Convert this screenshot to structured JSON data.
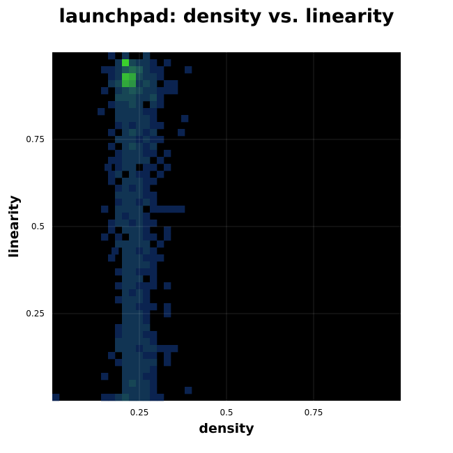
{
  "chart_data": {
    "type": "heatmap",
    "title": "launchpad: density vs. linearity",
    "xlabel": "density",
    "ylabel": "linearity",
    "xlim": [
      0,
      1
    ],
    "ylim": [
      0,
      1
    ],
    "grid": true,
    "background": "#000000",
    "x_ticks": [
      {
        "value": 0.25,
        "label": "0.25"
      },
      {
        "value": 0.5,
        "label": "0.5"
      },
      {
        "value": 0.75,
        "label": "0.75"
      }
    ],
    "y_ticks": [
      {
        "value": 0.25,
        "label": "0.25"
      },
      {
        "value": 0.5,
        "label": "0.5"
      },
      {
        "value": 0.75,
        "label": "0.75"
      }
    ],
    "bins": 50,
    "colors": {
      "low": "#0b2350",
      "mid": "#1e5a58",
      "high": "#3bd12c"
    },
    "cells": [
      [
        0.16,
        0.98,
        1
      ],
      [
        0.2,
        0.98,
        2
      ],
      [
        0.26,
        0.98,
        2
      ],
      [
        0.18,
        0.96,
        2
      ],
      [
        0.2,
        0.96,
        10
      ],
      [
        0.22,
        0.96,
        3
      ],
      [
        0.24,
        0.96,
        2
      ],
      [
        0.26,
        0.96,
        2
      ],
      [
        0.28,
        0.96,
        1
      ],
      [
        0.32,
        0.96,
        1
      ],
      [
        0.14,
        0.94,
        1
      ],
      [
        0.16,
        0.94,
        1
      ],
      [
        0.18,
        0.94,
        2
      ],
      [
        0.2,
        0.94,
        4
      ],
      [
        0.22,
        0.94,
        5
      ],
      [
        0.24,
        0.94,
        4
      ],
      [
        0.26,
        0.94,
        2
      ],
      [
        0.28,
        0.94,
        1
      ],
      [
        0.3,
        0.94,
        1
      ],
      [
        0.38,
        0.94,
        1
      ],
      [
        0.16,
        0.92,
        1
      ],
      [
        0.18,
        0.92,
        2
      ],
      [
        0.2,
        0.92,
        9
      ],
      [
        0.22,
        0.92,
        8
      ],
      [
        0.24,
        0.92,
        3
      ],
      [
        0.26,
        0.92,
        2
      ],
      [
        0.28,
        0.92,
        2
      ],
      [
        0.3,
        0.92,
        1
      ],
      [
        0.16,
        0.9,
        2
      ],
      [
        0.18,
        0.9,
        3
      ],
      [
        0.2,
        0.9,
        8
      ],
      [
        0.22,
        0.9,
        7
      ],
      [
        0.24,
        0.9,
        2
      ],
      [
        0.26,
        0.9,
        3
      ],
      [
        0.28,
        0.9,
        2
      ],
      [
        0.32,
        0.9,
        1
      ],
      [
        0.34,
        0.9,
        1
      ],
      [
        0.14,
        0.88,
        1
      ],
      [
        0.18,
        0.88,
        2
      ],
      [
        0.2,
        0.88,
        3
      ],
      [
        0.22,
        0.88,
        4
      ],
      [
        0.24,
        0.88,
        3
      ],
      [
        0.26,
        0.88,
        2
      ],
      [
        0.28,
        0.88,
        2
      ],
      [
        0.3,
        0.88,
        1
      ],
      [
        0.32,
        0.88,
        1
      ],
      [
        0.34,
        0.88,
        1
      ],
      [
        0.18,
        0.86,
        3
      ],
      [
        0.2,
        0.86,
        3
      ],
      [
        0.22,
        0.86,
        3
      ],
      [
        0.24,
        0.86,
        2
      ],
      [
        0.26,
        0.86,
        2
      ],
      [
        0.28,
        0.86,
        3
      ],
      [
        0.3,
        0.86,
        1
      ],
      [
        0.16,
        0.84,
        1
      ],
      [
        0.18,
        0.84,
        2
      ],
      [
        0.2,
        0.84,
        2
      ],
      [
        0.22,
        0.84,
        3
      ],
      [
        0.24,
        0.84,
        2
      ],
      [
        0.28,
        0.84,
        2
      ],
      [
        0.3,
        0.84,
        1
      ],
      [
        0.13,
        0.82,
        1
      ],
      [
        0.18,
        0.82,
        2
      ],
      [
        0.2,
        0.82,
        2
      ],
      [
        0.22,
        0.82,
        2
      ],
      [
        0.24,
        0.82,
        2
      ],
      [
        0.26,
        0.82,
        1
      ],
      [
        0.28,
        0.82,
        1
      ],
      [
        0.18,
        0.8,
        2
      ],
      [
        0.2,
        0.8,
        2
      ],
      [
        0.22,
        0.8,
        2
      ],
      [
        0.24,
        0.8,
        2
      ],
      [
        0.26,
        0.8,
        2
      ],
      [
        0.28,
        0.8,
        1
      ],
      [
        0.37,
        0.8,
        1
      ],
      [
        0.18,
        0.78,
        1
      ],
      [
        0.2,
        0.78,
        2
      ],
      [
        0.22,
        0.78,
        1
      ],
      [
        0.24,
        0.78,
        2
      ],
      [
        0.26,
        0.78,
        2
      ],
      [
        0.28,
        0.78,
        1
      ],
      [
        0.3,
        0.78,
        1
      ],
      [
        0.16,
        0.76,
        1
      ],
      [
        0.2,
        0.76,
        2
      ],
      [
        0.22,
        0.76,
        3
      ],
      [
        0.24,
        0.76,
        2
      ],
      [
        0.26,
        0.76,
        1
      ],
      [
        0.28,
        0.76,
        2
      ],
      [
        0.36,
        0.76,
        1
      ],
      [
        0.18,
        0.74,
        2
      ],
      [
        0.2,
        0.74,
        2
      ],
      [
        0.22,
        0.74,
        2
      ],
      [
        0.24,
        0.74,
        1
      ],
      [
        0.26,
        0.74,
        2
      ],
      [
        0.28,
        0.74,
        1
      ],
      [
        0.3,
        0.74,
        1
      ],
      [
        0.16,
        0.72,
        1
      ],
      [
        0.2,
        0.72,
        2
      ],
      [
        0.22,
        0.72,
        3
      ],
      [
        0.24,
        0.72,
        2
      ],
      [
        0.26,
        0.72,
        1
      ],
      [
        0.28,
        0.72,
        2
      ],
      [
        0.18,
        0.7,
        1
      ],
      [
        0.2,
        0.7,
        2
      ],
      [
        0.22,
        0.7,
        2
      ],
      [
        0.24,
        0.7,
        2
      ],
      [
        0.26,
        0.7,
        1
      ],
      [
        0.28,
        0.7,
        1
      ],
      [
        0.32,
        0.7,
        1
      ],
      [
        0.16,
        0.68,
        1
      ],
      [
        0.18,
        0.68,
        1
      ],
      [
        0.2,
        0.68,
        2
      ],
      [
        0.22,
        0.68,
        2
      ],
      [
        0.24,
        0.68,
        2
      ],
      [
        0.26,
        0.68,
        2
      ],
      [
        0.3,
        0.68,
        1
      ],
      [
        0.15,
        0.66,
        1
      ],
      [
        0.18,
        0.66,
        1
      ],
      [
        0.2,
        0.66,
        2
      ],
      [
        0.22,
        0.66,
        2
      ],
      [
        0.26,
        0.66,
        1
      ],
      [
        0.28,
        0.66,
        1
      ],
      [
        0.32,
        0.66,
        1
      ],
      [
        0.16,
        0.64,
        1
      ],
      [
        0.18,
        0.64,
        2
      ],
      [
        0.22,
        0.64,
        2
      ],
      [
        0.24,
        0.64,
        1
      ],
      [
        0.26,
        0.64,
        1
      ],
      [
        0.3,
        0.64,
        1
      ],
      [
        0.16,
        0.62,
        1
      ],
      [
        0.2,
        0.62,
        2
      ],
      [
        0.22,
        0.62,
        2
      ],
      [
        0.24,
        0.62,
        2
      ],
      [
        0.26,
        0.62,
        1
      ],
      [
        0.28,
        0.62,
        1
      ],
      [
        0.18,
        0.6,
        1
      ],
      [
        0.2,
        0.6,
        2
      ],
      [
        0.22,
        0.6,
        1
      ],
      [
        0.24,
        0.6,
        2
      ],
      [
        0.26,
        0.6,
        1
      ],
      [
        0.18,
        0.58,
        2
      ],
      [
        0.2,
        0.58,
        2
      ],
      [
        0.22,
        0.58,
        2
      ],
      [
        0.24,
        0.58,
        2
      ],
      [
        0.26,
        0.58,
        1
      ],
      [
        0.28,
        0.58,
        1
      ],
      [
        0.18,
        0.56,
        1
      ],
      [
        0.2,
        0.56,
        2
      ],
      [
        0.22,
        0.56,
        2
      ],
      [
        0.24,
        0.56,
        1
      ],
      [
        0.26,
        0.56,
        2
      ],
      [
        0.28,
        0.56,
        1
      ],
      [
        0.14,
        0.54,
        1
      ],
      [
        0.18,
        0.54,
        2
      ],
      [
        0.2,
        0.54,
        2
      ],
      [
        0.22,
        0.54,
        2
      ],
      [
        0.24,
        0.54,
        2
      ],
      [
        0.28,
        0.54,
        1
      ],
      [
        0.3,
        0.54,
        1
      ],
      [
        0.32,
        0.54,
        1
      ],
      [
        0.34,
        0.54,
        1
      ],
      [
        0.36,
        0.54,
        1
      ],
      [
        0.18,
        0.52,
        2
      ],
      [
        0.2,
        0.52,
        1
      ],
      [
        0.22,
        0.52,
        2
      ],
      [
        0.24,
        0.52,
        2
      ],
      [
        0.26,
        0.52,
        1
      ],
      [
        0.16,
        0.5,
        1
      ],
      [
        0.18,
        0.5,
        2
      ],
      [
        0.2,
        0.5,
        2
      ],
      [
        0.22,
        0.5,
        1
      ],
      [
        0.24,
        0.5,
        2
      ],
      [
        0.26,
        0.5,
        1
      ],
      [
        0.28,
        0.5,
        1
      ],
      [
        0.16,
        0.48,
        1
      ],
      [
        0.2,
        0.48,
        2
      ],
      [
        0.22,
        0.48,
        2
      ],
      [
        0.24,
        0.48,
        2
      ],
      [
        0.26,
        0.48,
        1
      ],
      [
        0.32,
        0.48,
        1
      ],
      [
        0.14,
        0.46,
        1
      ],
      [
        0.18,
        0.46,
        1
      ],
      [
        0.22,
        0.46,
        2
      ],
      [
        0.24,
        0.46,
        2
      ],
      [
        0.26,
        0.46,
        1
      ],
      [
        0.28,
        0.46,
        1
      ],
      [
        0.32,
        0.46,
        1
      ],
      [
        0.18,
        0.44,
        2
      ],
      [
        0.2,
        0.44,
        2
      ],
      [
        0.22,
        0.44,
        2
      ],
      [
        0.24,
        0.44,
        2
      ],
      [
        0.26,
        0.44,
        2
      ],
      [
        0.3,
        0.44,
        1
      ],
      [
        0.17,
        0.42,
        1
      ],
      [
        0.2,
        0.42,
        2
      ],
      [
        0.22,
        0.42,
        2
      ],
      [
        0.24,
        0.42,
        1
      ],
      [
        0.26,
        0.42,
        2
      ],
      [
        0.28,
        0.42,
        1
      ],
      [
        0.16,
        0.4,
        1
      ],
      [
        0.2,
        0.4,
        2
      ],
      [
        0.22,
        0.4,
        2
      ],
      [
        0.24,
        0.4,
        2
      ],
      [
        0.26,
        0.4,
        1
      ],
      [
        0.28,
        0.4,
        1
      ],
      [
        0.3,
        0.4,
        1
      ],
      [
        0.2,
        0.38,
        2
      ],
      [
        0.22,
        0.38,
        2
      ],
      [
        0.24,
        0.38,
        2
      ],
      [
        0.26,
        0.38,
        2
      ],
      [
        0.28,
        0.38,
        1
      ],
      [
        0.18,
        0.36,
        1
      ],
      [
        0.2,
        0.36,
        2
      ],
      [
        0.22,
        0.36,
        2
      ],
      [
        0.24,
        0.36,
        1
      ],
      [
        0.26,
        0.36,
        1
      ],
      [
        0.28,
        0.36,
        1
      ],
      [
        0.2,
        0.34,
        2
      ],
      [
        0.22,
        0.34,
        2
      ],
      [
        0.24,
        0.34,
        2
      ],
      [
        0.28,
        0.34,
        1
      ],
      [
        0.18,
        0.32,
        1
      ],
      [
        0.2,
        0.32,
        2
      ],
      [
        0.22,
        0.32,
        2
      ],
      [
        0.24,
        0.32,
        1
      ],
      [
        0.26,
        0.32,
        1
      ],
      [
        0.28,
        0.32,
        1
      ],
      [
        0.32,
        0.32,
        1
      ],
      [
        0.2,
        0.3,
        2
      ],
      [
        0.22,
        0.3,
        1
      ],
      [
        0.24,
        0.3,
        2
      ],
      [
        0.26,
        0.3,
        1
      ],
      [
        0.18,
        0.28,
        1
      ],
      [
        0.2,
        0.28,
        2
      ],
      [
        0.22,
        0.28,
        2
      ],
      [
        0.24,
        0.28,
        2
      ],
      [
        0.26,
        0.28,
        1
      ],
      [
        0.2,
        0.26,
        2
      ],
      [
        0.22,
        0.26,
        2
      ],
      [
        0.24,
        0.26,
        1
      ],
      [
        0.26,
        0.26,
        1
      ],
      [
        0.28,
        0.26,
        1
      ],
      [
        0.32,
        0.26,
        1
      ],
      [
        0.2,
        0.24,
        2
      ],
      [
        0.22,
        0.24,
        2
      ],
      [
        0.24,
        0.24,
        2
      ],
      [
        0.26,
        0.24,
        1
      ],
      [
        0.32,
        0.24,
        1
      ],
      [
        0.2,
        0.22,
        2
      ],
      [
        0.22,
        0.22,
        2
      ],
      [
        0.24,
        0.22,
        2
      ],
      [
        0.26,
        0.22,
        1
      ],
      [
        0.18,
        0.2,
        1
      ],
      [
        0.2,
        0.2,
        2
      ],
      [
        0.22,
        0.2,
        2
      ],
      [
        0.24,
        0.2,
        2
      ],
      [
        0.26,
        0.2,
        2
      ],
      [
        0.18,
        0.18,
        1
      ],
      [
        0.2,
        0.18,
        2
      ],
      [
        0.22,
        0.18,
        2
      ],
      [
        0.24,
        0.18,
        2
      ],
      [
        0.26,
        0.18,
        1
      ],
      [
        0.28,
        0.18,
        1
      ],
      [
        0.18,
        0.16,
        2
      ],
      [
        0.2,
        0.16,
        2
      ],
      [
        0.22,
        0.16,
        2
      ],
      [
        0.24,
        0.16,
        2
      ],
      [
        0.26,
        0.16,
        2
      ],
      [
        0.28,
        0.16,
        1
      ],
      [
        0.18,
        0.14,
        2
      ],
      [
        0.2,
        0.14,
        2
      ],
      [
        0.22,
        0.14,
        2
      ],
      [
        0.24,
        0.14,
        1
      ],
      [
        0.26,
        0.14,
        2
      ],
      [
        0.28,
        0.14,
        2
      ],
      [
        0.3,
        0.14,
        1
      ],
      [
        0.32,
        0.14,
        1
      ],
      [
        0.34,
        0.14,
        1
      ],
      [
        0.16,
        0.12,
        1
      ],
      [
        0.2,
        0.12,
        2
      ],
      [
        0.22,
        0.12,
        2
      ],
      [
        0.24,
        0.12,
        2
      ],
      [
        0.26,
        0.12,
        1
      ],
      [
        0.28,
        0.12,
        1
      ],
      [
        0.32,
        0.12,
        1
      ],
      [
        0.18,
        0.1,
        1
      ],
      [
        0.2,
        0.1,
        2
      ],
      [
        0.22,
        0.1,
        2
      ],
      [
        0.24,
        0.1,
        2
      ],
      [
        0.26,
        0.1,
        2
      ],
      [
        0.28,
        0.1,
        2
      ],
      [
        0.32,
        0.1,
        1
      ],
      [
        0.2,
        0.08,
        2
      ],
      [
        0.22,
        0.08,
        2
      ],
      [
        0.24,
        0.08,
        2
      ],
      [
        0.26,
        0.08,
        2
      ],
      [
        0.28,
        0.08,
        1
      ],
      [
        0.14,
        0.06,
        1
      ],
      [
        0.2,
        0.06,
        2
      ],
      [
        0.22,
        0.06,
        2
      ],
      [
        0.24,
        0.06,
        2
      ],
      [
        0.26,
        0.06,
        1
      ],
      [
        0.28,
        0.06,
        1
      ],
      [
        0.2,
        0.04,
        2
      ],
      [
        0.22,
        0.04,
        3
      ],
      [
        0.24,
        0.04,
        2
      ],
      [
        0.26,
        0.04,
        2
      ],
      [
        0.28,
        0.04,
        1
      ],
      [
        0.2,
        0.02,
        2
      ],
      [
        0.22,
        0.02,
        2
      ],
      [
        0.24,
        0.02,
        2
      ],
      [
        0.26,
        0.02,
        2
      ],
      [
        0.28,
        0.02,
        1
      ],
      [
        0.38,
        0.02,
        1
      ],
      [
        0.0,
        0.0,
        1
      ],
      [
        0.14,
        0.0,
        1
      ],
      [
        0.16,
        0.0,
        1
      ],
      [
        0.18,
        0.0,
        2
      ],
      [
        0.2,
        0.0,
        3
      ],
      [
        0.22,
        0.0,
        2
      ],
      [
        0.24,
        0.0,
        2
      ],
      [
        0.26,
        0.0,
        2
      ],
      [
        0.28,
        0.0,
        1
      ],
      [
        0.3,
        0.0,
        1
      ]
    ]
  }
}
